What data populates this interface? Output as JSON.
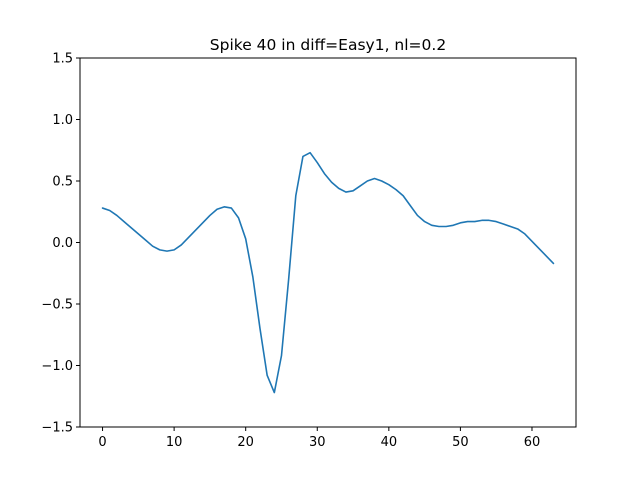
{
  "chart_data": {
    "type": "line",
    "title": "Spike 40 in diff=Easy1, nl=0.2",
    "xlabel": "",
    "ylabel": "",
    "xlim": [
      -3.15,
      66.15
    ],
    "ylim": [
      -1.5,
      1.5
    ],
    "x_ticks": [
      0,
      10,
      20,
      30,
      40,
      50,
      60
    ],
    "y_ticks": [
      -1.5,
      -1.0,
      -0.5,
      0.0,
      0.5,
      1.0,
      1.5
    ],
    "x_tick_labels": [
      "0",
      "10",
      "20",
      "30",
      "40",
      "50",
      "60"
    ],
    "y_tick_labels": [
      "−1.5",
      "−1.0",
      "−0.5",
      "0.0",
      "0.5",
      "1.0",
      "1.5"
    ],
    "grid": false,
    "series": [
      {
        "color": "#1f77b4",
        "x": [
          0,
          1,
          2,
          3,
          4,
          5,
          6,
          7,
          8,
          9,
          10,
          11,
          12,
          13,
          14,
          15,
          16,
          17,
          18,
          19,
          20,
          21,
          22,
          23,
          24,
          25,
          26,
          27,
          28,
          29,
          30,
          31,
          32,
          33,
          34,
          35,
          36,
          37,
          38,
          39,
          40,
          41,
          42,
          43,
          44,
          45,
          46,
          47,
          48,
          49,
          50,
          51,
          52,
          53,
          54,
          55,
          56,
          57,
          58,
          59,
          60,
          61,
          62,
          63
        ],
        "values": [
          0.28,
          0.26,
          0.22,
          0.17,
          0.12,
          0.07,
          0.02,
          -0.03,
          -0.06,
          -0.07,
          -0.06,
          -0.02,
          0.04,
          0.1,
          0.16,
          0.22,
          0.27,
          0.29,
          0.28,
          0.2,
          0.03,
          -0.28,
          -0.7,
          -1.08,
          -1.22,
          -0.92,
          -0.3,
          0.38,
          0.7,
          0.73,
          0.65,
          0.56,
          0.49,
          0.44,
          0.41,
          0.42,
          0.46,
          0.5,
          0.52,
          0.5,
          0.47,
          0.43,
          0.38,
          0.3,
          0.22,
          0.17,
          0.14,
          0.13,
          0.13,
          0.14,
          0.16,
          0.17,
          0.17,
          0.18,
          0.18,
          0.17,
          0.15,
          0.13,
          0.11,
          0.07,
          0.01,
          -0.05,
          -0.11,
          -0.17
        ]
      }
    ]
  }
}
